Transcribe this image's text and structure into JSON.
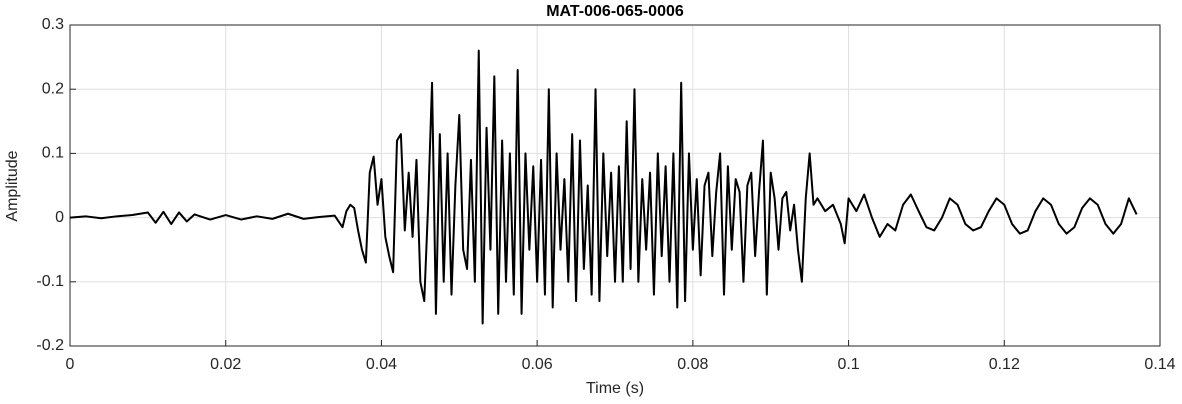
{
  "chart_data": {
    "type": "line",
    "title": "MAT-006-065-0006",
    "xlabel": "Time (s)",
    "ylabel": "Amplitude",
    "color": "#000000",
    "grid": true,
    "xlim": [
      0,
      0.14
    ],
    "xticks": [
      0,
      0.02,
      0.04,
      0.06,
      0.08,
      0.1,
      0.12,
      0.14
    ],
    "ylim": [
      -0.2,
      0.3
    ],
    "yticks": [
      0.3,
      0.2,
      0.1,
      0,
      -0.1,
      -0.2
    ],
    "x": [
      0,
      0.002,
      0.004,
      0.006,
      0.008,
      0.01,
      0.011,
      0.012,
      0.013,
      0.014,
      0.015,
      0.016,
      0.018,
      0.02,
      0.022,
      0.024,
      0.026,
      0.028,
      0.03,
      0.032,
      0.034,
      0.035,
      0.0355,
      0.036,
      0.0365,
      0.037,
      0.0375,
      0.038,
      0.0385,
      0.039,
      0.0395,
      0.04,
      0.0405,
      0.041,
      0.0415,
      0.042,
      0.0425,
      0.043,
      0.0435,
      0.044,
      0.0445,
      0.045,
      0.0455,
      0.046,
      0.0465,
      0.047,
      0.0475,
      0.048,
      0.0485,
      0.049,
      0.0495,
      0.05,
      0.0505,
      0.051,
      0.0515,
      0.052,
      0.0525,
      0.053,
      0.0535,
      0.054,
      0.0545,
      0.055,
      0.0555,
      0.056,
      0.0565,
      0.057,
      0.0575,
      0.058,
      0.0585,
      0.059,
      0.0595,
      0.06,
      0.0605,
      0.061,
      0.0615,
      0.062,
      0.0625,
      0.063,
      0.0635,
      0.064,
      0.0645,
      0.065,
      0.0655,
      0.066,
      0.0665,
      0.067,
      0.0675,
      0.068,
      0.0685,
      0.069,
      0.0695,
      0.07,
      0.0705,
      0.071,
      0.0715,
      0.072,
      0.0725,
      0.073,
      0.0735,
      0.074,
      0.0745,
      0.075,
      0.0755,
      0.076,
      0.0765,
      0.077,
      0.0775,
      0.078,
      0.0785,
      0.079,
      0.0795,
      0.08,
      0.0805,
      0.081,
      0.0815,
      0.082,
      0.0825,
      0.083,
      0.0835,
      0.084,
      0.0845,
      0.085,
      0.0855,
      0.086,
      0.0865,
      0.087,
      0.0875,
      0.088,
      0.0885,
      0.089,
      0.0895,
      0.09,
      0.0905,
      0.091,
      0.0915,
      0.092,
      0.0925,
      0.093,
      0.0935,
      0.094,
      0.0945,
      0.095,
      0.0955,
      0.096,
      0.097,
      0.098,
      0.099,
      0.0995,
      0.1,
      0.101,
      0.102,
      0.103,
      0.104,
      0.105,
      0.106,
      0.107,
      0.108,
      0.109,
      0.11,
      0.111,
      0.112,
      0.113,
      0.114,
      0.115,
      0.116,
      0.117,
      0.118,
      0.119,
      0.12,
      0.121,
      0.122,
      0.123,
      0.124,
      0.125,
      0.126,
      0.127,
      0.128,
      0.129,
      0.13,
      0.131,
      0.132,
      0.133,
      0.134,
      0.135,
      0.136,
      0.137
    ],
    "values": [
      0,
      0.002,
      -0.001,
      0.002,
      0.004,
      0.008,
      -0.008,
      0.009,
      -0.01,
      0.008,
      -0.006,
      0.005,
      -0.003,
      0.004,
      -0.003,
      0.002,
      -0.002,
      0.006,
      -0.002,
      0.001,
      0.003,
      -0.015,
      0.01,
      0.02,
      0.015,
      -0.02,
      -0.05,
      -0.07,
      0.07,
      0.095,
      0.02,
      0.06,
      -0.03,
      -0.06,
      -0.085,
      0.12,
      0.13,
      -0.02,
      0.07,
      -0.03,
      0.09,
      -0.1,
      -0.13,
      0.02,
      0.21,
      -0.15,
      0.13,
      -0.1,
      0.1,
      -0.12,
      0.05,
      0.16,
      -0.05,
      -0.08,
      0.09,
      -0.1,
      0.26,
      -0.165,
      0.14,
      -0.05,
      0.22,
      -0.15,
      0.12,
      -0.1,
      0.1,
      -0.12,
      0.23,
      -0.15,
      0.1,
      -0.05,
      0.08,
      -0.1,
      0.09,
      -0.12,
      0.2,
      -0.14,
      0.1,
      -0.05,
      0.06,
      -0.1,
      0.13,
      -0.13,
      0.12,
      -0.08,
      0.05,
      -0.12,
      0.2,
      -0.13,
      0.1,
      -0.06,
      0.07,
      -0.1,
      0.08,
      -0.1,
      0.15,
      -0.08,
      0.2,
      -0.1,
      0.06,
      -0.05,
      0.07,
      -0.12,
      0.1,
      -0.06,
      0.08,
      -0.1,
      0.1,
      -0.14,
      0.21,
      -0.13,
      0.1,
      -0.05,
      0.06,
      -0.09,
      0.05,
      0.07,
      -0.06,
      0.04,
      0.1,
      -0.12,
      0.08,
      -0.05,
      0.06,
      0.04,
      -0.1,
      0.05,
      0.07,
      -0.06,
      0.04,
      0.12,
      -0.12,
      0.07,
      0.03,
      -0.05,
      0.03,
      0.04,
      -0.02,
      0.02,
      -0.05,
      -0.1,
      0.03,
      0.1,
      0.02,
      0.03,
      0.01,
      0.02,
      -0.01,
      -0.04,
      0.03,
      0.01,
      0.036,
      0,
      -0.03,
      -0.01,
      -0.02,
      0.02,
      0.036,
      0.01,
      -0.015,
      -0.02,
      0,
      0.03,
      0.02,
      -0.01,
      -0.02,
      -0.015,
      0.01,
      0.03,
      0.02,
      -0.01,
      -0.025,
      -0.02,
      0.01,
      0.03,
      0.02,
      -0.01,
      -0.025,
      -0.015,
      0.015,
      0.03,
      0.02,
      -0.01,
      -0.025,
      -0.01,
      0.03,
      0.005
    ]
  }
}
